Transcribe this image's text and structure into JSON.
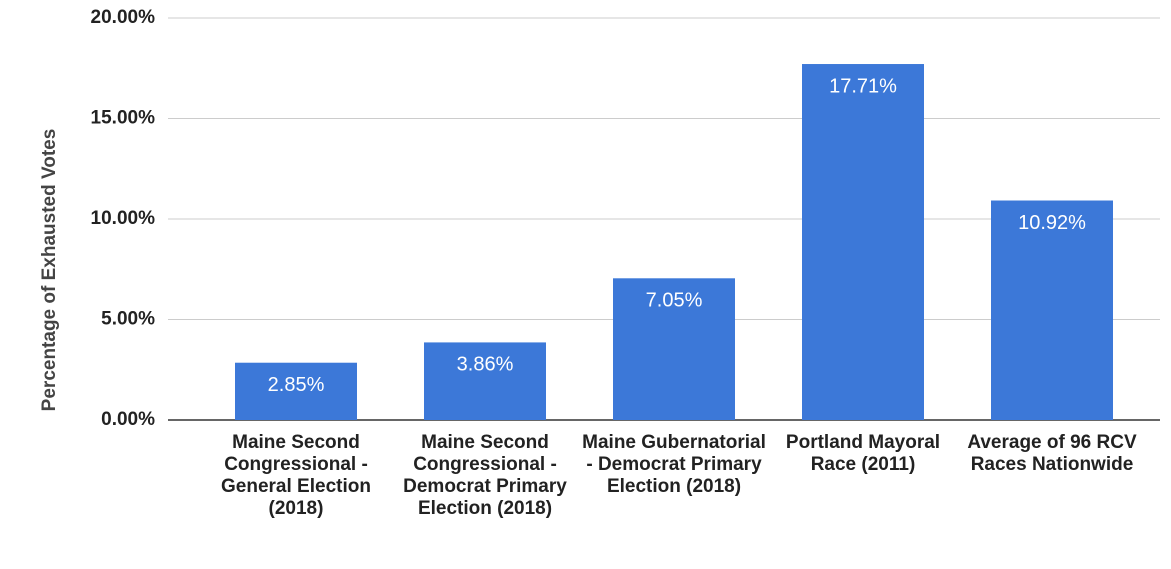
{
  "chart_data": {
    "type": "bar",
    "y_axis_label": "Percentage of Exhausted Votes",
    "categories": [
      "Maine Second Congressional - General Election (2018)",
      "Maine Second Congressional - Democrat Primary Election (2018)",
      "Maine Gubernatorial - Democrat Primary Election (2018)",
      "Portland Mayoral Race (2011)",
      "Average of 96 RCV Races Nationwide"
    ],
    "values": [
      2.85,
      3.86,
      7.05,
      17.71,
      10.92
    ],
    "value_labels": [
      "2.85%",
      "3.86%",
      "7.05%",
      "17.71%",
      "10.92%"
    ],
    "color": "#3c78d8",
    "ylim": [
      0,
      20
    ],
    "yticks": [
      {
        "value": 0,
        "label": "0.00%"
      },
      {
        "value": 5,
        "label": "5.00%"
      },
      {
        "value": 10,
        "label": "10.00%"
      },
      {
        "value": 15,
        "label": "15.00%"
      },
      {
        "value": 20,
        "label": "20.00%"
      }
    ],
    "grid": true
  }
}
